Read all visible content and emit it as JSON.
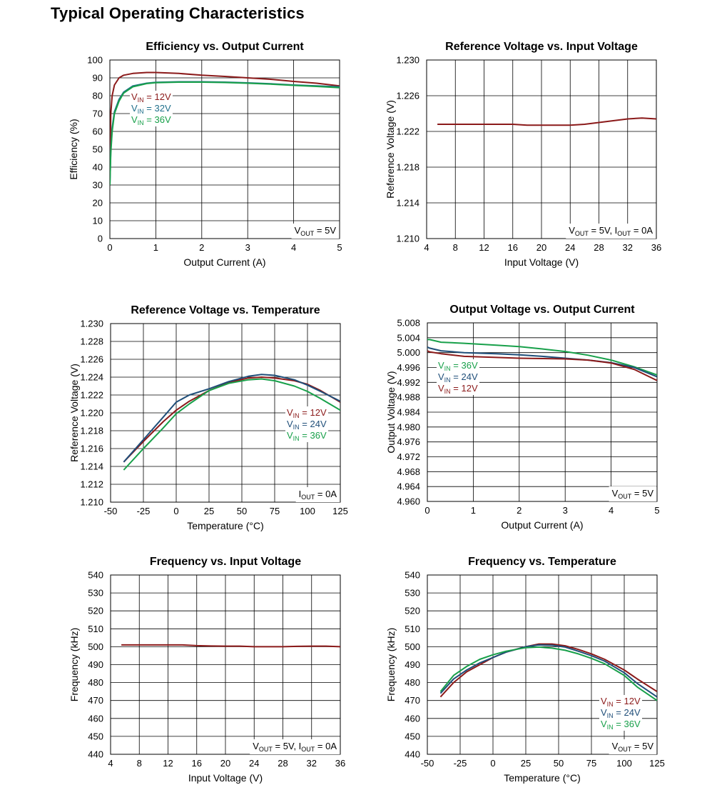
{
  "page": {
    "title": "Typical Operating Characteristics"
  },
  "colors": {
    "v12": "#8b1a1a",
    "v24": "#1f4e79",
    "v32": "#1f6f8b",
    "v36": "#18a04a",
    "grid": "#000000"
  },
  "chart_data": [
    {
      "id": "eff",
      "type": "line",
      "title": "Efficiency vs. Output Current",
      "xlabel": "Output Current (A)",
      "ylabel": "Efficiency (%)",
      "xlim": [
        0,
        5
      ],
      "ylim": [
        0,
        100
      ],
      "xticks": [
        0,
        1,
        2,
        3,
        4,
        5
      ],
      "yticks": [
        0,
        10,
        20,
        30,
        40,
        50,
        60,
        70,
        80,
        90,
        100
      ],
      "xtick_labels": [
        "0",
        "1",
        "2",
        "3",
        "4",
        "5"
      ],
      "ytick_labels": [
        "0",
        "10",
        "20",
        "30",
        "40",
        "50",
        "60",
        "70",
        "80",
        "90",
        "100"
      ],
      "grid": true,
      "series": [
        {
          "name": "VIN = 12V",
          "color": "#8b1a1a",
          "x": [
            0,
            0.02,
            0.05,
            0.1,
            0.2,
            0.3,
            0.5,
            0.8,
            1,
            1.5,
            2,
            2.5,
            3,
            3.5,
            4,
            4.5,
            5
          ],
          "y": [
            35,
            70,
            80,
            86,
            90,
            91.5,
            92.5,
            93,
            93,
            92.5,
            91.5,
            90.8,
            90,
            89.2,
            88,
            87,
            85.5
          ]
        },
        {
          "name": "VIN = 32V",
          "color": "#1f6f8b",
          "x": [
            0,
            0.02,
            0.05,
            0.1,
            0.2,
            0.3,
            0.5,
            0.8,
            1,
            1.5,
            2,
            2.5,
            3,
            3.5,
            4,
            4.5,
            5
          ],
          "y": [
            30,
            50,
            62,
            71,
            78,
            82,
            85.5,
            87,
            87.5,
            87.8,
            87.8,
            87.6,
            87.2,
            86.7,
            86,
            85.5,
            85
          ]
        },
        {
          "name": "VIN = 36V",
          "color": "#18a04a",
          "x": [
            0,
            0.02,
            0.05,
            0.1,
            0.2,
            0.3,
            0.5,
            0.8,
            1,
            1.5,
            2,
            2.5,
            3,
            3.5,
            4,
            4.5,
            5
          ],
          "y": [
            30,
            48,
            60,
            70,
            77,
            81.5,
            85,
            86.8,
            87.3,
            87.6,
            87.6,
            87.4,
            87,
            86.5,
            85.8,
            85.2,
            84.5
          ]
        }
      ],
      "legend": [
        {
          "prefix": "V",
          "sub": "IN",
          "suffix": " = 12V",
          "color": "#8b1a1a"
        },
        {
          "prefix": "V",
          "sub": "IN",
          "suffix": " = 32V",
          "color": "#1f6f8b"
        },
        {
          "prefix": "V",
          "sub": "IN",
          "suffix": " = 36V",
          "color": "#18a04a"
        }
      ],
      "note": [
        {
          "t": "V"
        },
        {
          "t": "OUT",
          "sub": true
        },
        {
          "t": " = 5V"
        }
      ]
    },
    {
      "id": "refvin",
      "type": "line",
      "title": "Reference Voltage vs. Input Voltage",
      "xlabel": "Input Voltage (V)",
      "ylabel": "Reference Voltage (V)",
      "xlim": [
        4,
        36
      ],
      "ylim": [
        1.21,
        1.23
      ],
      "xticks": [
        4,
        8,
        12,
        16,
        20,
        24,
        28,
        32,
        36
      ],
      "yticks": [
        1.21,
        1.214,
        1.218,
        1.222,
        1.226,
        1.23
      ],
      "xtick_labels": [
        "4",
        "8",
        "12",
        "16",
        "20",
        "24",
        "28",
        "32",
        "36"
      ],
      "ytick_labels": [
        "1.210",
        "1.214",
        "1.218",
        "1.222",
        "1.226",
        "1.230"
      ],
      "grid": true,
      "series": [
        {
          "name": "",
          "color": "#8b1a1a",
          "x": [
            5.5,
            8,
            12,
            16,
            18,
            20,
            22,
            24,
            26,
            28,
            30,
            32,
            34,
            36
          ],
          "y": [
            1.2228,
            1.2228,
            1.2228,
            1.2228,
            1.2227,
            1.2227,
            1.2227,
            1.2227,
            1.2228,
            1.223,
            1.2232,
            1.2234,
            1.2235,
            1.2234
          ]
        }
      ],
      "legend": [],
      "note": [
        {
          "t": "V"
        },
        {
          "t": "OUT",
          "sub": true
        },
        {
          "t": " = 5V, I"
        },
        {
          "t": "OUT",
          "sub": true
        },
        {
          "t": " = 0A"
        }
      ]
    },
    {
      "id": "reftemp",
      "type": "line",
      "title": "Reference Voltage  vs. Temperature",
      "xlabel": "Temperature (°C)",
      "ylabel": "Reference Voltage (V)",
      "xlim": [
        -50,
        125
      ],
      "ylim": [
        1.21,
        1.23
      ],
      "xticks": [
        -50,
        -25,
        0,
        25,
        50,
        75,
        100,
        125
      ],
      "yticks": [
        1.21,
        1.212,
        1.214,
        1.216,
        1.218,
        1.22,
        1.222,
        1.224,
        1.226,
        1.228,
        1.23
      ],
      "xtick_labels": [
        "-50",
        "-25",
        "0",
        "25",
        "50",
        "75",
        "100",
        "125"
      ],
      "ytick_labels": [
        "1.210",
        "1.212",
        "1.214",
        "1.216",
        "1.218",
        "1.220",
        "1.222",
        "1.224",
        "1.226",
        "1.228",
        "1.230"
      ],
      "grid": true,
      "series": [
        {
          "name": "VIN = 12V",
          "color": "#8b1a1a",
          "x": [
            -40,
            -25,
            -10,
            0,
            10,
            25,
            40,
            55,
            65,
            75,
            90,
            100,
            110,
            125
          ],
          "y": [
            1.2145,
            1.2168,
            1.219,
            1.2203,
            1.2213,
            1.2225,
            1.2234,
            1.2239,
            1.224,
            1.2239,
            1.2236,
            1.2232,
            1.2225,
            1.2212
          ]
        },
        {
          "name": "VIN = 24V",
          "color": "#1f4e79",
          "x": [
            -40,
            -25,
            -10,
            0,
            10,
            25,
            40,
            55,
            65,
            75,
            90,
            100,
            110,
            125
          ],
          "y": [
            1.2145,
            1.217,
            1.2195,
            1.2212,
            1.222,
            1.2227,
            1.2235,
            1.2241,
            1.2243,
            1.2242,
            1.2237,
            1.2231,
            1.2224,
            1.2213
          ]
        },
        {
          "name": "VIN = 36V",
          "color": "#18a04a",
          "x": [
            -40,
            -25,
            -10,
            0,
            10,
            25,
            40,
            55,
            65,
            75,
            90,
            100,
            110,
            125
          ],
          "y": [
            1.2136,
            1.216,
            1.2183,
            1.2199,
            1.221,
            1.2225,
            1.2233,
            1.2237,
            1.2238,
            1.2236,
            1.223,
            1.2224,
            1.2216,
            1.2203
          ]
        }
      ],
      "legend": [
        {
          "prefix": "V",
          "sub": "IN",
          "suffix": " = 12V",
          "color": "#8b1a1a"
        },
        {
          "prefix": "V",
          "sub": "IN",
          "suffix": " = 24V",
          "color": "#1f4e79"
        },
        {
          "prefix": "V",
          "sub": "IN",
          "suffix": " = 36V",
          "color": "#18a04a"
        }
      ],
      "note": [
        {
          "t": "I"
        },
        {
          "t": "OUT",
          "sub": true
        },
        {
          "t": " = 0A"
        }
      ]
    },
    {
      "id": "vout",
      "type": "line",
      "title": "Output Voltage vs. Output Current",
      "xlabel": "Output Current (A)",
      "ylabel": "Output Voltage (V)",
      "xlim": [
        0,
        5
      ],
      "ylim": [
        4.96,
        5.008
      ],
      "xticks": [
        0,
        1,
        2,
        3,
        4,
        5
      ],
      "yticks": [
        4.96,
        4.964,
        4.968,
        4.972,
        4.976,
        4.98,
        4.984,
        4.988,
        4.992,
        4.996,
        5.0,
        5.004,
        5.008
      ],
      "xtick_labels": [
        "0",
        "1",
        "2",
        "3",
        "4",
        "5"
      ],
      "ytick_labels": [
        "4.960",
        "4.964",
        "4.968",
        "4.972",
        "4.976",
        "4.980",
        "4.984",
        "4.988",
        "4.992",
        "4.996",
        "5.000",
        "5.004",
        "5.008"
      ],
      "grid": true,
      "series": [
        {
          "name": "VIN = 36V",
          "color": "#18a04a",
          "x": [
            0,
            0.05,
            0.3,
            0.8,
            1.5,
            2,
            2.5,
            3,
            3.5,
            4,
            4.5,
            5
          ],
          "y": [
            5.0035,
            5.0035,
            5.0028,
            5.0025,
            5.002,
            5.0016,
            5.001,
            5.0003,
            4.9993,
            4.998,
            4.9962,
            4.994
          ]
        },
        {
          "name": "VIN = 24V",
          "color": "#1f4e79",
          "x": [
            0,
            0.05,
            0.3,
            0.8,
            1.5,
            2,
            2.5,
            3,
            3.5,
            4,
            4.5,
            5
          ],
          "y": [
            5.0015,
            5.0012,
            5.0005,
            5.0,
            4.9997,
            4.9994,
            4.999,
            4.9985,
            4.998,
            4.9973,
            4.996,
            4.9935
          ]
        },
        {
          "name": "VIN = 12V",
          "color": "#8b1a1a",
          "x": [
            0,
            0.05,
            0.3,
            0.8,
            1.5,
            2,
            2.5,
            3,
            3.5,
            4,
            4.5,
            5
          ],
          "y": [
            5.0005,
            5.0002,
            4.9997,
            4.999,
            4.9987,
            4.9985,
            4.9984,
            4.9983,
            4.998,
            4.9972,
            4.9955,
            4.9925
          ]
        }
      ],
      "legend": [
        {
          "prefix": "V",
          "sub": "IN",
          "suffix": " = 36V",
          "color": "#18a04a"
        },
        {
          "prefix": "V",
          "sub": "IN",
          "suffix": " = 24V",
          "color": "#1f4e79"
        },
        {
          "prefix": "V",
          "sub": "IN",
          "suffix": " = 12V",
          "color": "#8b1a1a"
        }
      ],
      "note": [
        {
          "t": "V"
        },
        {
          "t": "OUT",
          "sub": true
        },
        {
          "t": " = 5V"
        }
      ]
    },
    {
      "id": "freqvin",
      "type": "line",
      "title": "Frequency vs. Input Voltage",
      "xlabel": "Input Voltage (V)",
      "ylabel": "Frequency (kHz)",
      "xlim": [
        4,
        36
      ],
      "ylim": [
        440,
        540
      ],
      "xticks": [
        4,
        8,
        12,
        16,
        20,
        24,
        28,
        32,
        36
      ],
      "yticks": [
        440,
        450,
        460,
        470,
        480,
        490,
        500,
        510,
        520,
        530,
        540
      ],
      "xtick_labels": [
        "4",
        "8",
        "12",
        "16",
        "20",
        "24",
        "28",
        "32",
        "36"
      ],
      "ytick_labels": [
        "440",
        "450",
        "460",
        "470",
        "480",
        "490",
        "500",
        "510",
        "520",
        "530",
        "540"
      ],
      "grid": true,
      "series": [
        {
          "name": "",
          "color": "#8b1a1a",
          "x": [
            5.5,
            8,
            12,
            14,
            16,
            18,
            20,
            22,
            24,
            26,
            28,
            30,
            32,
            34,
            36
          ],
          "y": [
            501,
            501,
            501,
            501,
            500.6,
            500.4,
            500.3,
            500.3,
            500,
            500,
            500,
            500.2,
            500.3,
            500.3,
            500
          ]
        }
      ],
      "legend": [],
      "note": [
        {
          "t": "V"
        },
        {
          "t": "OUT",
          "sub": true
        },
        {
          "t": " = 5V, I"
        },
        {
          "t": "OUT",
          "sub": true
        },
        {
          "t": " = 0A"
        }
      ]
    },
    {
      "id": "freqtemp",
      "type": "line",
      "title": "Frequency vs. Temperature",
      "xlabel": "Temperature (°C)",
      "ylabel": "Frequency (kHz)",
      "xlim": [
        -50,
        125
      ],
      "ylim": [
        440,
        540
      ],
      "xticks": [
        -50,
        -25,
        0,
        25,
        50,
        75,
        100,
        125
      ],
      "yticks": [
        440,
        450,
        460,
        470,
        480,
        490,
        500,
        510,
        520,
        530,
        540
      ],
      "xtick_labels": [
        "-50",
        "-25",
        "0",
        "25",
        "50",
        "75",
        "100",
        "125"
      ],
      "ytick_labels": [
        "440",
        "450",
        "460",
        "470",
        "480",
        "490",
        "500",
        "510",
        "520",
        "530",
        "540"
      ],
      "grid": true,
      "series": [
        {
          "name": "VIN = 12V",
          "color": "#8b1a1a",
          "x": [
            -40,
            -30,
            -20,
            -10,
            0,
            10,
            25,
            35,
            45,
            55,
            65,
            75,
            85,
            100,
            110,
            125
          ],
          "y": [
            472,
            480,
            486,
            490,
            494,
            497,
            500,
            501.5,
            501.5,
            500.5,
            498.5,
            496,
            493,
            487,
            482,
            475
          ]
        },
        {
          "name": "VIN = 24V",
          "color": "#1f4e79",
          "x": [
            -40,
            -30,
            -20,
            -10,
            0,
            10,
            25,
            35,
            45,
            55,
            65,
            75,
            85,
            100,
            110,
            125
          ],
          "y": [
            474,
            482,
            487,
            491,
            494,
            497,
            500,
            501,
            500.8,
            499.8,
            497.5,
            495,
            492,
            485.5,
            479.5,
            472
          ]
        },
        {
          "name": "VIN = 36V",
          "color": "#18a04a",
          "x": [
            -40,
            -30,
            -20,
            -10,
            0,
            10,
            25,
            35,
            45,
            55,
            65,
            75,
            85,
            100,
            110,
            125
          ],
          "y": [
            475,
            484,
            489,
            493,
            495.5,
            497.5,
            499.5,
            499.8,
            499.2,
            498,
            496,
            493.5,
            490.5,
            484,
            477.5,
            470
          ]
        }
      ],
      "legend": [
        {
          "prefix": "V",
          "sub": "IN",
          "suffix": " = 12V",
          "color": "#8b1a1a"
        },
        {
          "prefix": "V",
          "sub": "IN",
          "suffix": " = 24V",
          "color": "#1f4e79"
        },
        {
          "prefix": "V",
          "sub": "IN",
          "suffix": " = 36V",
          "color": "#18a04a"
        }
      ],
      "note": [
        {
          "t": "V"
        },
        {
          "t": "OUT",
          "sub": true
        },
        {
          "t": " = 5V"
        }
      ]
    }
  ]
}
